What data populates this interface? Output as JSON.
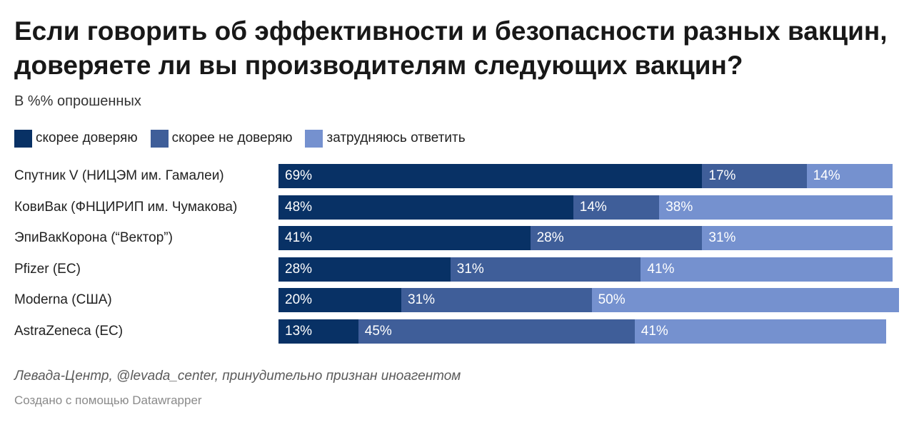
{
  "chart_data": {
    "type": "bar",
    "orientation": "horizontal",
    "stacked": true,
    "title": "Если говорить об эффективности и безопасности разных вакцин, доверяете ли вы производителям следующих вакцин?",
    "subtitle": "В %% опрошенных",
    "categories": [
      "Спутник V (НИЦЭМ им. Гамалеи)",
      "КовиВак (ФНЦИРИП им. Чумакова)",
      "ЭпиВакКорона (“Вектор”)",
      "Pfizer (ЕС)",
      "Moderna (США)",
      "AstraZeneca (ЕС)"
    ],
    "series": [
      {
        "name": "скорее  доверяю",
        "color": "#083165",
        "values": [
          69,
          48,
          41,
          28,
          20,
          13
        ]
      },
      {
        "name": "скорее не доверяю",
        "color": "#3f5e99",
        "values": [
          17,
          14,
          28,
          31,
          31,
          45
        ]
      },
      {
        "name": "затрудняюсь ответить",
        "color": "#7591cf",
        "values": [
          14,
          38,
          31,
          41,
          50,
          41
        ]
      }
    ],
    "value_suffix": "%",
    "xlim": [
      0,
      100
    ],
    "legend_position": "top-left",
    "grid": false,
    "source": "Левада-Центр, @levada_center, принудительно признан иноагентом",
    "credit": "Создано с помощью Datawrapper"
  }
}
